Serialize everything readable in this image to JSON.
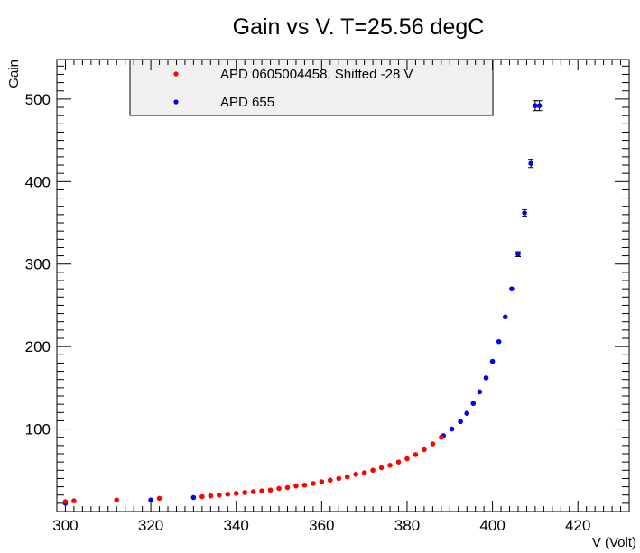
{
  "chart_data": {
    "type": "scatter",
    "title": "Gain vs V. T=25.56 degC",
    "xlabel": "V (Volt)",
    "ylabel": "Gain",
    "xlim": [
      298,
      432
    ],
    "ylim": [
      0,
      548
    ],
    "x_ticks": [
      "300",
      "320",
      "340",
      "360",
      "380",
      "400",
      "420"
    ],
    "y_ticks": [
      "100",
      "200",
      "300",
      "400",
      "500"
    ],
    "grid": false,
    "legend_placement": "top-left",
    "series": [
      {
        "name": "APD 0605004458, Shifted -28 V",
        "color": "#ff0000",
        "x": [
          300,
          302,
          312,
          322,
          332,
          334,
          336,
          338,
          340,
          342,
          344,
          346,
          348,
          350,
          352,
          354,
          356,
          358,
          360,
          362,
          364,
          366,
          368,
          370,
          372,
          374,
          376,
          378,
          380,
          382,
          384,
          386,
          388
        ],
        "y": [
          12,
          13,
          14,
          16,
          18,
          19,
          20,
          21,
          22,
          23,
          24,
          25,
          26,
          28,
          29,
          31,
          32,
          34,
          36,
          38,
          40,
          42,
          45,
          47,
          50,
          53,
          56,
          60,
          64,
          69,
          75,
          82,
          90
        ]
      },
      {
        "name": "APD 655",
        "color": "#0000ff",
        "x": [
          300,
          320,
          330,
          388.5,
          390.5,
          392.5,
          394,
          395.5,
          397,
          398.5,
          400,
          401.5,
          403,
          404.5,
          406,
          407.5,
          409,
          410,
          411
        ],
        "y": [
          10,
          14,
          17,
          92,
          100,
          109,
          119,
          131,
          145,
          162,
          182,
          206,
          236,
          270,
          312,
          362,
          422,
          492,
          492
        ],
        "err": [
          0,
          0,
          0,
          0,
          0,
          0,
          0,
          0,
          0,
          0,
          0,
          0,
          0,
          0,
          3,
          4,
          5,
          6,
          6
        ]
      }
    ]
  }
}
